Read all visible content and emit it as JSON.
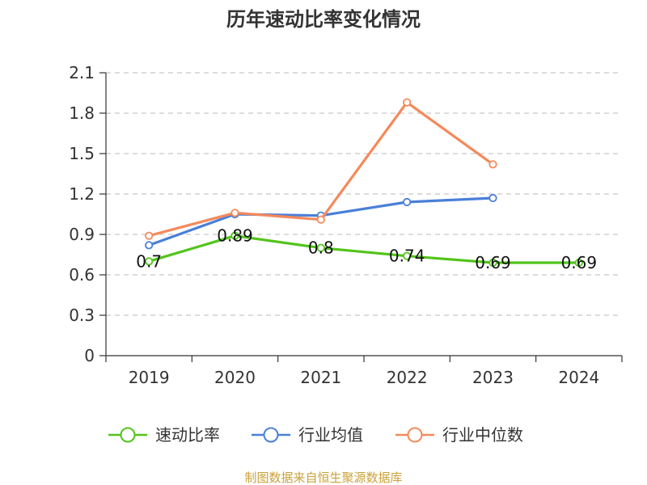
{
  "chart_data": {
    "type": "line",
    "title": "历年速动比率变化情况",
    "categories": [
      "2019",
      "2020",
      "2021",
      "2022",
      "2023",
      "2024"
    ],
    "ylim": [
      0,
      2.1
    ],
    "yticks": [
      "0",
      "0.3",
      "0.6",
      "0.9",
      "1.2",
      "1.5",
      "1.8",
      "2.1"
    ],
    "grid": true,
    "legend_position": "bottom",
    "series": [
      {
        "name": "速动比率",
        "color": "#52c41a",
        "values": [
          0.7,
          0.89,
          0.8,
          0.74,
          0.69,
          0.69
        ],
        "labels": [
          "0.7",
          "0.89",
          "0.8",
          "0.74",
          "0.69",
          "0.69"
        ]
      },
      {
        "name": "行业均值",
        "color": "#4a7fd8",
        "values": [
          0.82,
          1.05,
          1.04,
          1.14,
          1.17,
          null
        ]
      },
      {
        "name": "行业中位数",
        "color": "#f5895b",
        "values": [
          0.89,
          1.06,
          1.01,
          1.88,
          1.42,
          null
        ]
      }
    ]
  },
  "source_text": "制图数据来自恒生聚源数据库",
  "source_color": "#c9a23a"
}
